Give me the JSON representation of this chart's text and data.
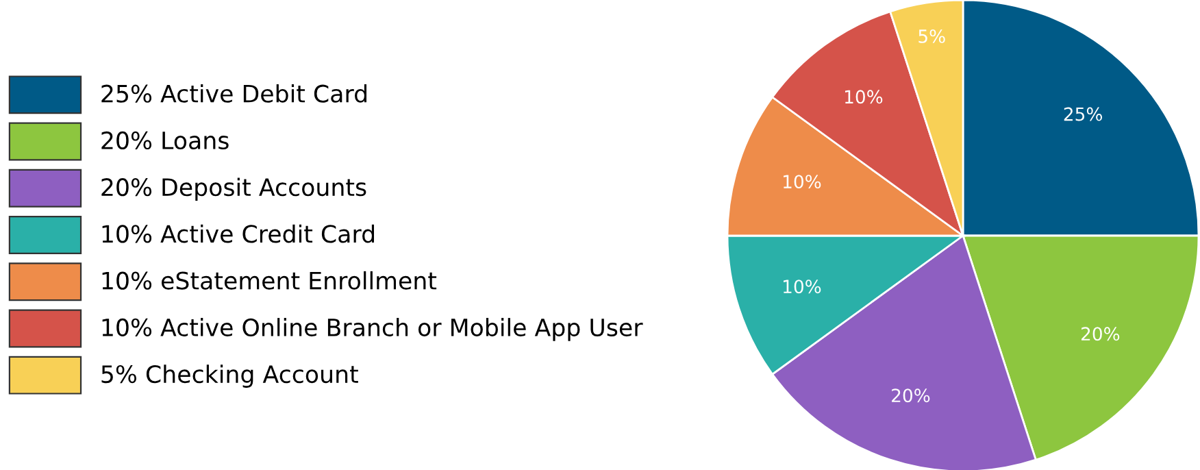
{
  "chart_data": {
    "type": "pie",
    "categories": [
      "25% Active Debit Card",
      "20% Loans",
      "20% Deposit Accounts",
      "10% Active Credit Card",
      "10% eStatement Enrollment",
      "10% Active Online Branch or Mobile App User",
      "5% Checking Account"
    ],
    "values": [
      25,
      20,
      20,
      10,
      10,
      10,
      5
    ],
    "value_labels": [
      "25%",
      "20%",
      "20%",
      "10%",
      "10%",
      "10%",
      "5%"
    ],
    "colors": [
      "#005a87",
      "#8dc63f",
      "#8e5fc1",
      "#2ab0a8",
      "#ee8c4a",
      "#d5534a",
      "#f8d056"
    ],
    "legend": "left"
  }
}
